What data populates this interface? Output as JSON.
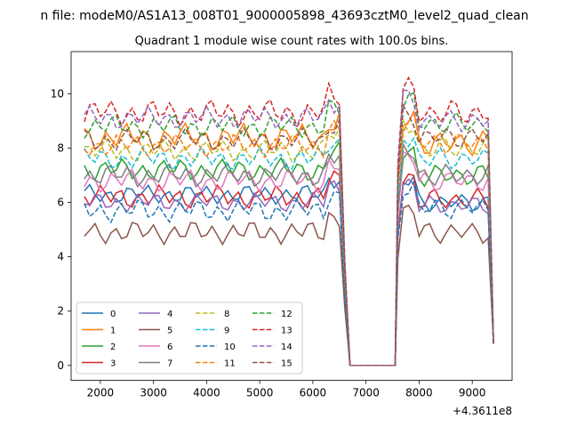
{
  "figure": {
    "suptitle": "n file: modeM0/AS1A13_008T01_9000005898_43693cztM0_level2_quad_clean",
    "title": "Quadrant 1 module wise count rates with 100.0s bins.",
    "offset_label": "+4.3611e8"
  },
  "chart_data": {
    "type": "line",
    "title": "Quadrant 1 module wise count rates with 100.0s bins.",
    "xlabel": "",
    "ylabel": "",
    "x_offset": 436110000,
    "xlim": [
      1450,
      9750
    ],
    "ylim": [
      -0.55,
      11.55
    ],
    "xticks": [
      2000,
      3000,
      4000,
      5000,
      6000,
      7000,
      8000,
      9000
    ],
    "yticks": [
      0,
      2,
      4,
      6,
      8,
      10
    ],
    "grid": false,
    "legend": {
      "placement": "lower-left",
      "columns": 4
    },
    "gap": {
      "drop_start": 6500,
      "zero_start": 6700,
      "zero_end": 7550,
      "rise_end": 7700
    },
    "x": [
      1700,
      1800,
      1900,
      2000,
      2100,
      2200,
      2300,
      2400,
      2500,
      2600,
      2700,
      2800,
      2900,
      3000,
      3100,
      3200,
      3300,
      3400,
      3500,
      3600,
      3700,
      3800,
      3900,
      4000,
      4100,
      4200,
      4300,
      4400,
      4500,
      4600,
      4700,
      4800,
      4900,
      5000,
      5100,
      5200,
      5300,
      5400,
      5500,
      5600,
      5700,
      5800,
      5900,
      6000,
      6100,
      6200,
      6300,
      6400,
      6500,
      6600,
      6700,
      6800,
      6900,
      7000,
      7100,
      7200,
      7300,
      7400,
      7500,
      7550,
      7600,
      7700,
      7800,
      7900,
      8000,
      8100,
      8200,
      8300,
      8400,
      8500,
      8600,
      8700,
      8800,
      8900,
      9000,
      9100,
      9200,
      9300,
      9400
    ],
    "series": [
      {
        "name": "0",
        "color": "#1f77b4",
        "linestyle": "solid",
        "level1": 6.3,
        "level2": 6.0,
        "amp": 0.25
      },
      {
        "name": "1",
        "color": "#ff7f0e",
        "linestyle": "solid",
        "level1": 8.4,
        "level2": 8.2,
        "amp": 0.35
      },
      {
        "name": "2",
        "color": "#2ca02c",
        "linestyle": "solid",
        "level1": 7.2,
        "level2": 7.0,
        "amp": 0.3
      },
      {
        "name": "3",
        "color": "#d62728",
        "linestyle": "solid",
        "level1": 6.2,
        "level2": 6.1,
        "amp": 0.3
      },
      {
        "name": "4",
        "color": "#9467bd",
        "linestyle": "solid",
        "level1": 6.0,
        "level2": 5.9,
        "amp": 0.25
      },
      {
        "name": "5",
        "color": "#8c564b",
        "linestyle": "solid",
        "level1": 4.9,
        "level2": 4.9,
        "amp": 0.3
      },
      {
        "name": "6",
        "color": "#e377c2",
        "linestyle": "solid",
        "level1": 6.8,
        "level2": 6.8,
        "amp": 0.3
      },
      {
        "name": "7",
        "color": "#7f7f7f",
        "linestyle": "solid",
        "level1": 7.0,
        "level2": 7.0,
        "amp": 0.3
      },
      {
        "name": "8",
        "color": "#bcbd22",
        "linestyle": "dashed",
        "level1": 7.9,
        "level2": 8.0,
        "amp": 0.3
      },
      {
        "name": "9",
        "color": "#17becf",
        "linestyle": "dashed",
        "level1": 7.6,
        "level2": 7.6,
        "amp": 0.3
      },
      {
        "name": "10",
        "color": "#1f77b4",
        "linestyle": "dashed",
        "level1": 5.7,
        "level2": 5.8,
        "amp": 0.3
      },
      {
        "name": "11",
        "color": "#ff7f0e",
        "linestyle": "dashed",
        "level1": 8.1,
        "level2": 8.2,
        "amp": 0.3
      },
      {
        "name": "12",
        "color": "#2ca02c",
        "linestyle": "dashed",
        "level1": 8.8,
        "level2": 8.9,
        "amp": 0.3
      },
      {
        "name": "13",
        "color": "#d62728",
        "linestyle": "dashed",
        "level1": 9.3,
        "level2": 9.3,
        "amp": 0.35
      },
      {
        "name": "14",
        "color": "#9467bd",
        "linestyle": "dashed",
        "level1": 9.1,
        "level2": 9.0,
        "amp": 0.3
      },
      {
        "name": "15",
        "color": "#8c564b",
        "linestyle": "dashed",
        "level1": 8.3,
        "level2": 8.4,
        "amp": 0.3
      }
    ]
  }
}
